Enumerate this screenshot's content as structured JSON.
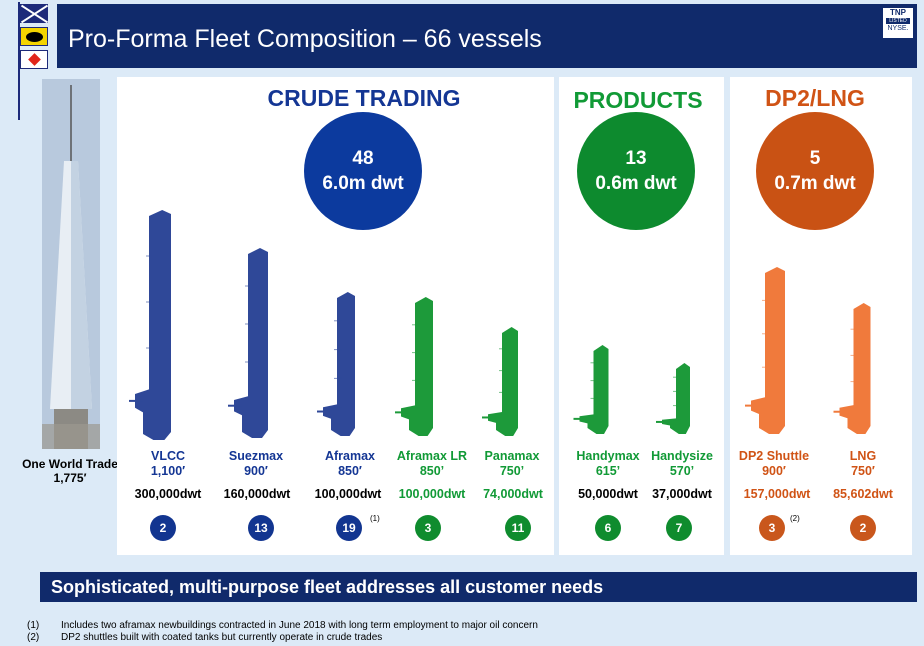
{
  "header": {
    "title": "Pro-Forma Fleet Composition – 66 vessels",
    "nyse": {
      "line1": "TNP",
      "line2": "LISTED",
      "line3": "NYSE."
    }
  },
  "tower": {
    "name": "One World Trade",
    "height": "1,775′"
  },
  "segments": [
    {
      "title": "CRUDE TRADING",
      "count": "48",
      "dwt": "6.0m dwt",
      "color": "#0c3a9e"
    },
    {
      "title": "PRODUCTS",
      "count": "13",
      "dwt": "0.6m dwt",
      "color": "#0d8a2e"
    },
    {
      "title": "DP2/LNG",
      "count": "5",
      "dwt": "0.7m dwt",
      "color": "#c95214"
    }
  ],
  "vessels": [
    {
      "name": "VLCC",
      "length": "1,100′",
      "dwt": "300,000dwt",
      "count": "2",
      "color": "#2f4898"
    },
    {
      "name": "Suezmax",
      "length": "900′",
      "dwt": "160,000dwt",
      "count": "13",
      "color": "#2f4898"
    },
    {
      "name": "Aframax",
      "length": "850′",
      "dwt": "100,000dwt",
      "count": "19",
      "note": "(1)",
      "color": "#2f4898"
    },
    {
      "name": "Aframax LR",
      "length": "850’",
      "dwt": "100,000dwt",
      "count": "3",
      "color": "#1d9a3a"
    },
    {
      "name": "Panamax",
      "length": "750’",
      "dwt": "74,000dwt",
      "count": "11",
      "color": "#1d9a3a"
    },
    {
      "name": "Handymax",
      "length": "615’",
      "dwt": "50,000dwt",
      "count": "6",
      "color": "#1d9a3a"
    },
    {
      "name": "Handysize",
      "length": "570’",
      "dwt": "37,000dwt",
      "count": "7",
      "color": "#1d9a3a"
    },
    {
      "name": "DP2 Shuttle",
      "length": "900′",
      "dwt": "157,000dwt",
      "count": "3",
      "note": "(2)",
      "color": "#f07a3c"
    },
    {
      "name": "LNG",
      "length": "750′",
      "dwt": "85,602dwt",
      "count": "2",
      "color": "#f07a3c"
    }
  ],
  "banner": "Sophisticated, multi-purpose fleet addresses all customer needs",
  "footnotes": [
    {
      "num": "(1)",
      "text": "Includes two aframax newbuildings contracted in June 2018 with long term employment to major oil concern"
    },
    {
      "num": "(2)",
      "text": "DP2 shuttles built with coated tanks but currently operate in crude trades"
    }
  ]
}
